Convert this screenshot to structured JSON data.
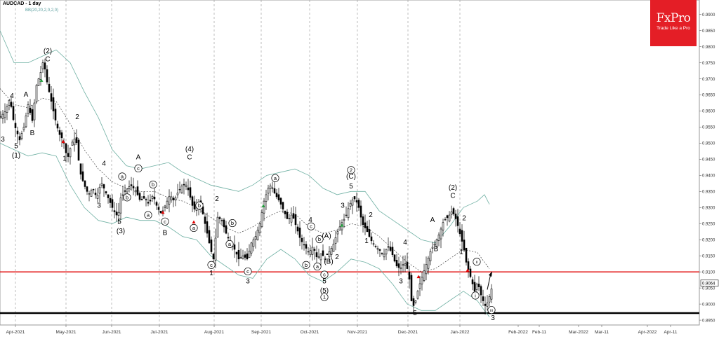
{
  "header": {
    "symbol_title": "AUDCAD - 1 day",
    "indicator_label": "BB(20,20,2,0,2,0)"
  },
  "brand": {
    "name": "FxPro",
    "tagline": "Trade Like a Pro",
    "color": "#e41e26"
  },
  "chart_data": {
    "type": "candlestick",
    "title": "AUDCAD - 1 day",
    "indicator": "BB(20,20,2,0,2,0)",
    "y_axis": {
      "position": "right",
      "range": [
        0.8935,
        0.9945
      ],
      "ticks": [
        "0.9900",
        "0.9850",
        "0.9800",
        "0.9750",
        "0.9700",
        "0.9650",
        "0.9600",
        "0.9550",
        "0.9500",
        "0.9450",
        "0.9400",
        "0.9350",
        "0.9300",
        "0.9250",
        "0.9200",
        "0.9150",
        "0.9100",
        "0.9050",
        "0.9000",
        "0.8950"
      ]
    },
    "x_axis": {
      "labels": [
        "Apr-2021",
        "May-2021",
        "Jun-2021",
        "Jul-2021",
        "Aug-2021",
        "Sep-2021",
        "Oct-2021",
        "Nov-2021",
        "Dec-2021",
        "Jan-2022",
        "Feb-2022",
        "Feb-11",
        "Mar-2022",
        "Mar-11",
        "Apr-2022",
        "Apr-11"
      ]
    },
    "current_price": "0.9064",
    "horizontal_levels": [
      {
        "value": 0.91,
        "color": "#e00000"
      },
      {
        "value": 0.8972,
        "color": "#000000"
      }
    ],
    "close_path": [
      [
        0,
        0.958
      ],
      [
        8,
        0.96
      ],
      [
        14,
        0.964
      ],
      [
        20,
        0.956
      ],
      [
        28,
        0.951
      ],
      [
        34,
        0.955
      ],
      [
        40,
        0.962
      ],
      [
        46,
        0.957
      ],
      [
        52,
        0.968
      ],
      [
        58,
        0.972
      ],
      [
        62,
        0.976
      ],
      [
        66,
        0.97
      ],
      [
        72,
        0.964
      ],
      [
        78,
        0.958
      ],
      [
        84,
        0.953
      ],
      [
        90,
        0.951
      ],
      [
        96,
        0.945
      ],
      [
        102,
        0.95
      ],
      [
        108,
        0.952
      ],
      [
        114,
        0.941
      ],
      [
        120,
        0.937
      ],
      [
        126,
        0.934
      ],
      [
        132,
        0.936
      ],
      [
        138,
        0.933
      ],
      [
        144,
        0.938
      ],
      [
        150,
        0.935
      ],
      [
        156,
        0.932
      ],
      [
        162,
        0.929
      ],
      [
        168,
        0.927
      ],
      [
        172,
        0.933
      ],
      [
        178,
        0.935
      ],
      [
        186,
        0.937
      ],
      [
        194,
        0.935
      ],
      [
        200,
        0.932
      ],
      [
        206,
        0.933
      ],
      [
        212,
        0.931
      ],
      [
        218,
        0.934
      ],
      [
        224,
        0.93
      ],
      [
        230,
        0.928
      ],
      [
        236,
        0.931
      ],
      [
        242,
        0.934
      ],
      [
        248,
        0.932
      ],
      [
        254,
        0.935
      ],
      [
        260,
        0.937
      ],
      [
        266,
        0.937
      ],
      [
        270,
        0.934
      ],
      [
        276,
        0.929
      ],
      [
        282,
        0.932
      ],
      [
        288,
        0.929
      ],
      [
        294,
        0.923
      ],
      [
        300,
        0.917
      ],
      [
        304,
        0.914
      ],
      [
        310,
        0.927
      ],
      [
        316,
        0.926
      ],
      [
        322,
        0.922
      ],
      [
        328,
        0.919
      ],
      [
        334,
        0.917
      ],
      [
        340,
        0.914
      ],
      [
        346,
        0.915
      ],
      [
        352,
        0.914
      ],
      [
        358,
        0.919
      ],
      [
        364,
        0.921
      ],
      [
        370,
        0.925
      ],
      [
        376,
        0.932
      ],
      [
        382,
        0.936
      ],
      [
        386,
        0.937
      ],
      [
        392,
        0.934
      ],
      [
        398,
        0.932
      ],
      [
        404,
        0.929
      ],
      [
        410,
        0.926
      ],
      [
        416,
        0.928
      ],
      [
        422,
        0.924
      ],
      [
        428,
        0.92
      ],
      [
        434,
        0.918
      ],
      [
        440,
        0.916
      ],
      [
        446,
        0.918
      ],
      [
        452,
        0.914
      ],
      [
        458,
        0.916
      ],
      [
        462,
        0.914
      ],
      [
        468,
        0.916
      ],
      [
        474,
        0.918
      ],
      [
        480,
        0.922
      ],
      [
        486,
        0.925
      ],
      [
        492,
        0.927
      ],
      [
        498,
        0.931
      ],
      [
        504,
        0.933
      ],
      [
        510,
        0.931
      ],
      [
        516,
        0.925
      ],
      [
        522,
        0.923
      ],
      [
        528,
        0.92
      ],
      [
        534,
        0.918
      ],
      [
        540,
        0.917
      ],
      [
        546,
        0.915
      ],
      [
        552,
        0.918
      ],
      [
        558,
        0.916
      ],
      [
        564,
        0.912
      ],
      [
        570,
        0.911
      ],
      [
        576,
        0.913
      ],
      [
        582,
        0.91
      ],
      [
        586,
        0.901
      ],
      [
        590,
        0.899
      ],
      [
        596,
        0.905
      ],
      [
        602,
        0.909
      ],
      [
        608,
        0.913
      ],
      [
        614,
        0.917
      ],
      [
        620,
        0.919
      ],
      [
        626,
        0.922
      ],
      [
        632,
        0.926
      ],
      [
        638,
        0.927
      ],
      [
        644,
        0.929
      ],
      [
        650,
        0.926
      ],
      [
        656,
        0.921
      ],
      [
        660,
        0.918
      ],
      [
        664,
        0.913
      ],
      [
        668,
        0.91
      ],
      [
        672,
        0.907
      ],
      [
        676,
        0.904
      ],
      [
        680,
        0.907
      ],
      [
        686,
        0.902
      ],
      [
        692,
        0.899
      ],
      [
        698,
        0.903
      ],
      [
        702,
        0.9064
      ]
    ],
    "bb_upper": [
      [
        0,
        0.985
      ],
      [
        20,
        0.975
      ],
      [
        40,
        0.975
      ],
      [
        60,
        0.977
      ],
      [
        80,
        0.979
      ],
      [
        100,
        0.975
      ],
      [
        120,
        0.966
      ],
      [
        140,
        0.958
      ],
      [
        160,
        0.948
      ],
      [
        180,
        0.943
      ],
      [
        200,
        0.942
      ],
      [
        220,
        0.943
      ],
      [
        240,
        0.944
      ],
      [
        260,
        0.941
      ],
      [
        280,
        0.939
      ],
      [
        300,
        0.937
      ],
      [
        320,
        0.936
      ],
      [
        340,
        0.935
      ],
      [
        360,
        0.937
      ],
      [
        380,
        0.94
      ],
      [
        400,
        0.941
      ],
      [
        420,
        0.942
      ],
      [
        440,
        0.94
      ],
      [
        460,
        0.936
      ],
      [
        480,
        0.934
      ],
      [
        500,
        0.935
      ],
      [
        520,
        0.935
      ],
      [
        540,
        0.929
      ],
      [
        560,
        0.926
      ],
      [
        580,
        0.923
      ],
      [
        600,
        0.92
      ],
      [
        620,
        0.919
      ],
      [
        640,
        0.924
      ],
      [
        660,
        0.93
      ],
      [
        680,
        0.932
      ],
      [
        690,
        0.934
      ],
      [
        697,
        0.931
      ]
    ],
    "bb_middle": [
      [
        0,
        0.967
      ],
      [
        20,
        0.962
      ],
      [
        40,
        0.961
      ],
      [
        60,
        0.964
      ],
      [
        80,
        0.963
      ],
      [
        100,
        0.956
      ],
      [
        120,
        0.948
      ],
      [
        140,
        0.942
      ],
      [
        160,
        0.938
      ],
      [
        180,
        0.936
      ],
      [
        200,
        0.935
      ],
      [
        220,
        0.935
      ],
      [
        240,
        0.933
      ],
      [
        260,
        0.932
      ],
      [
        280,
        0.93
      ],
      [
        300,
        0.927
      ],
      [
        320,
        0.924
      ],
      [
        340,
        0.922
      ],
      [
        360,
        0.924
      ],
      [
        380,
        0.927
      ],
      [
        400,
        0.929
      ],
      [
        420,
        0.928
      ],
      [
        440,
        0.924
      ],
      [
        460,
        0.922
      ],
      [
        480,
        0.923
      ],
      [
        500,
        0.925
      ],
      [
        520,
        0.924
      ],
      [
        540,
        0.921
      ],
      [
        560,
        0.917
      ],
      [
        580,
        0.913
      ],
      [
        600,
        0.91
      ],
      [
        620,
        0.911
      ],
      [
        640,
        0.914
      ],
      [
        660,
        0.917
      ],
      [
        680,
        0.916
      ],
      [
        690,
        0.913
      ],
      [
        697,
        0.911
      ]
    ],
    "bb_lower": [
      [
        0,
        0.95
      ],
      [
        20,
        0.948
      ],
      [
        40,
        0.946
      ],
      [
        60,
        0.947
      ],
      [
        80,
        0.946
      ],
      [
        100,
        0.937
      ],
      [
        120,
        0.93
      ],
      [
        140,
        0.926
      ],
      [
        160,
        0.925
      ],
      [
        180,
        0.927
      ],
      [
        200,
        0.926
      ],
      [
        220,
        0.926
      ],
      [
        240,
        0.924
      ],
      [
        260,
        0.921
      ],
      [
        280,
        0.92
      ],
      [
        300,
        0.915
      ],
      [
        320,
        0.912
      ],
      [
        340,
        0.909
      ],
      [
        360,
        0.908
      ],
      [
        380,
        0.914
      ],
      [
        400,
        0.917
      ],
      [
        420,
        0.914
      ],
      [
        440,
        0.909
      ],
      [
        460,
        0.907
      ],
      [
        480,
        0.91
      ],
      [
        500,
        0.914
      ],
      [
        520,
        0.913
      ],
      [
        540,
        0.911
      ],
      [
        560,
        0.906
      ],
      [
        580,
        0.9
      ],
      [
        600,
        0.898
      ],
      [
        620,
        0.898
      ],
      [
        640,
        0.901
      ],
      [
        660,
        0.904
      ],
      [
        680,
        0.901
      ],
      [
        690,
        0.898
      ],
      [
        697,
        0.896
      ]
    ],
    "wave_labels": [
      {
        "t": "4",
        "x": 17,
        "y": 0.964
      },
      {
        "t": "A",
        "x": 37,
        "y": 0.9645
      },
      {
        "t": "(2)",
        "x": 68,
        "y": 0.978
      },
      {
        "t": "C",
        "x": 68,
        "y": 0.9755
      },
      {
        "t": "3",
        "x": 4,
        "y": 0.9505
      },
      {
        "t": "5",
        "x": 23,
        "y": 0.9485
      },
      {
        "t": "(1)",
        "x": 23,
        "y": 0.9455
      },
      {
        "t": "B",
        "x": 46,
        "y": 0.9525
      },
      {
        "t": "2",
        "x": 110,
        "y": 0.9575
      },
      {
        "t": "1",
        "x": 92,
        "y": 0.9445
      },
      {
        "t": "4",
        "x": 148,
        "y": 0.943
      },
      {
        "t": "3",
        "x": 141,
        "y": 0.93
      },
      {
        "t": "5",
        "x": 170,
        "y": 0.925
      },
      {
        "t": "(3)",
        "x": 172,
        "y": 0.922
      },
      {
        "t": "A",
        "x": 197,
        "y": 0.945
      },
      {
        "t": "B",
        "x": 235,
        "y": 0.9215
      },
      {
        "t": "(4)",
        "x": 270,
        "y": 0.9475
      },
      {
        "t": "C",
        "x": 270,
        "y": 0.945
      },
      {
        "t": "2",
        "x": 309,
        "y": 0.932
      },
      {
        "t": "1",
        "x": 301,
        "y": 0.909
      },
      {
        "t": "3",
        "x": 353,
        "y": 0.9065
      },
      {
        "t": "4",
        "x": 442,
        "y": 0.9255
      },
      {
        "t": "(A)",
        "x": 465,
        "y": 0.9205
      },
      {
        "t": "2",
        "x": 480,
        "y": 0.914
      },
      {
        "t": "(B)",
        "x": 468,
        "y": 0.9125
      },
      {
        "t": "5",
        "x": 462,
        "y": 0.9065
      },
      {
        "t": "(5)",
        "x": 462,
        "y": 0.9035
      },
      {
        "t": "3",
        "x": 488,
        "y": 0.93
      },
      {
        "t": "5",
        "x": 500,
        "y": 0.936
      },
      {
        "t": "(C)",
        "x": 500,
        "y": 0.939
      },
      {
        "t": "2",
        "x": 528,
        "y": 0.927
      },
      {
        "t": "1",
        "x": 522,
        "y": 0.919
      },
      {
        "t": "4",
        "x": 577,
        "y": 0.9185
      },
      {
        "t": "3",
        "x": 571,
        "y": 0.9065
      },
      {
        "t": "5",
        "x": 591,
        "y": 0.8965
      },
      {
        "t": "A",
        "x": 616,
        "y": 0.9255
      },
      {
        "t": "B",
        "x": 621,
        "y": 0.9165
      },
      {
        "t": "(2)",
        "x": 645,
        "y": 0.9355
      },
      {
        "t": "C",
        "x": 645,
        "y": 0.933
      },
      {
        "t": "2",
        "x": 661,
        "y": 0.926
      },
      {
        "t": "1",
        "x": 657,
        "y": 0.9155
      },
      {
        "t": "3",
        "x": 702,
        "y": 0.895
      }
    ],
    "circled_labels": [
      {
        "t": "a",
        "x": 174,
        "y": 0.939
      },
      {
        "t": "c",
        "x": 197,
        "y": 0.9415
      },
      {
        "t": "b",
        "x": 181,
        "y": 0.9325
      },
      {
        "t": "a",
        "x": 211,
        "y": 0.927
      },
      {
        "t": "b",
        "x": 218,
        "y": 0.9365
      },
      {
        "t": "c",
        "x": 235,
        "y": 0.925
      },
      {
        "t": "b",
        "x": 284,
        "y": 0.93
      },
      {
        "t": "a",
        "x": 276,
        "y": 0.923
      },
      {
        "t": "c",
        "x": 301,
        "y": 0.9115
      },
      {
        "t": "b",
        "x": 331,
        "y": 0.9245
      },
      {
        "t": "a",
        "x": 327,
        "y": 0.918
      },
      {
        "t": "c",
        "x": 353,
        "y": 0.9095
      },
      {
        "t": "a",
        "x": 392,
        "y": 0.9385
      },
      {
        "t": "c",
        "x": 443,
        "y": 0.9235
      },
      {
        "t": "b",
        "x": 455,
        "y": 0.9195
      },
      {
        "t": "b",
        "x": 436,
        "y": 0.9115
      },
      {
        "t": "a",
        "x": 452,
        "y": 0.911
      },
      {
        "t": "c",
        "x": 462,
        "y": 0.9085
      },
      {
        "t": "2",
        "x": 500,
        "y": 0.941
      },
      {
        "t": "1",
        "x": 462,
        "y": 0.9015
      },
      {
        "t": "ii",
        "x": 679,
        "y": 0.9125
      },
      {
        "t": "i",
        "x": 677,
        "y": 0.902
      },
      {
        "t": "iii",
        "x": 700,
        "y": 0.8975
      }
    ],
    "markers": [
      {
        "x": 59,
        "y": 0.9695,
        "color": "#1e9e3a"
      },
      {
        "x": 90,
        "y": 0.9505,
        "color": "#e00000"
      },
      {
        "x": 232,
        "y": 0.9285,
        "color": "#e00000"
      },
      {
        "x": 276,
        "y": 0.9255,
        "color": "#e00000"
      },
      {
        "x": 375,
        "y": 0.9305,
        "color": "#1e9e3a"
      },
      {
        "x": 487,
        "y": 0.9245,
        "color": "#1e9e3a"
      },
      {
        "x": 596,
        "y": 0.9085,
        "color": "#e00000"
      },
      {
        "x": 666,
        "y": 0.9105,
        "color": "#e00000"
      }
    ],
    "grid": true
  }
}
